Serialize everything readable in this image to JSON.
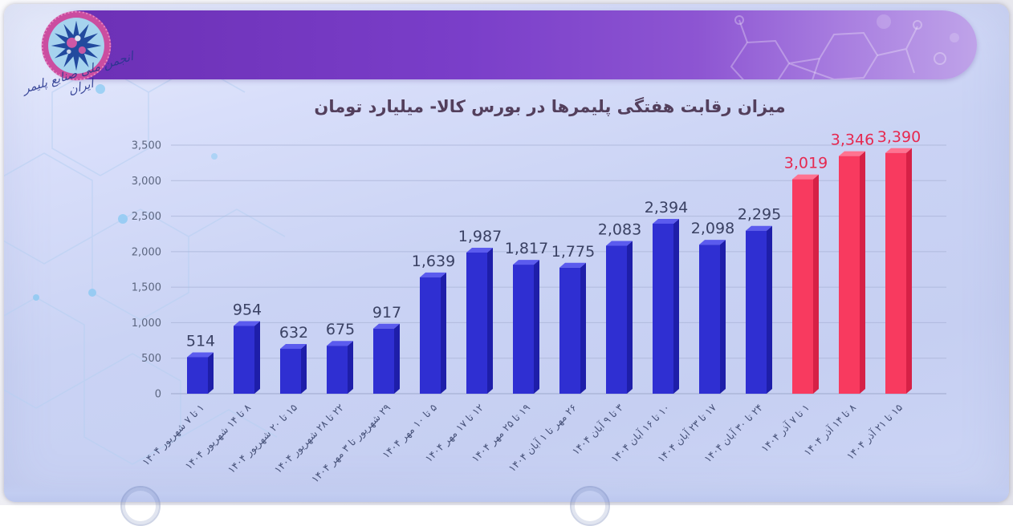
{
  "header": {
    "signature": "انجمن ملی صنایع پلیمر ایران"
  },
  "chart_data": {
    "type": "bar",
    "title": "میزان رقابت هفتگی پلیمرها در بورس کالا- میلیارد تومان",
    "unit": "میلیارد تومان",
    "xlabel": "",
    "ylabel": "",
    "ylim": [
      0,
      3500
    ],
    "ytick_step": 500,
    "ytick_labels": [
      "0",
      "500",
      "1,000",
      "1,500",
      "2,000",
      "2,500",
      "3,000",
      "3,500"
    ],
    "grid": true,
    "legend_position": "none",
    "categories": [
      "۱ تا ۷ شهریور ۱۴۰۴",
      "۸ تا ۱۴ شهریور ۱۴۰۴",
      "۱۵ تا ۲۰ شهریور ۱۴۰۴",
      "۲۲ تا ۲۸ شهریور ۱۴۰۴",
      "۲۹ شهریور تا ۳ مهر ۱۴۰۴",
      "۵ تا ۱۰ مهر ۱۴۰۴",
      "۱۲ تا ۱۷ مهر ۱۴۰۴",
      "۱۹ تا ۲۵ مهر ۱۴۰۴",
      "۲۶ مهر تا ۱ آبان ۱۴۰۴",
      "۳ تا ۹ آبان ۱۴۰۴",
      "۱۰ تا ۱۶ آبان ۱۴۰۴",
      "۱۷ تا ۲۳ آبان ۱۴۰۴",
      "۲۴ تا ۳۰ آبان ۱۴۰۴",
      "۱ تا ۷ آذر ۱۴۰۴",
      "۸ تا ۱۴ آذر ۱۴۰۴",
      "۱۵ تا ۲۱ آذر ۱۴۰۴"
    ],
    "values": [
      514,
      954,
      632,
      675,
      917,
      1639,
      1987,
      1817,
      1775,
      2083,
      2394,
      2098,
      2295,
      3019,
      3346,
      3390
    ],
    "bar_color_keys": [
      "blue",
      "blue",
      "blue",
      "blue",
      "blue",
      "blue",
      "blue",
      "blue",
      "blue",
      "blue",
      "blue",
      "blue",
      "blue",
      "red",
      "red",
      "red"
    ],
    "palette": {
      "blue": {
        "front": "#2f2fd2",
        "top": "#5b5bee",
        "side": "#1e1ea9",
        "label": "#3a4163"
      },
      "red": {
        "front": "#f83a5f",
        "top": "#ff7390",
        "side": "#d62146",
        "label": "#e62950"
      }
    },
    "grid_color": "#a9b3d6",
    "axis_label_color": "#5c6680",
    "category_label_color": "#48537a"
  }
}
